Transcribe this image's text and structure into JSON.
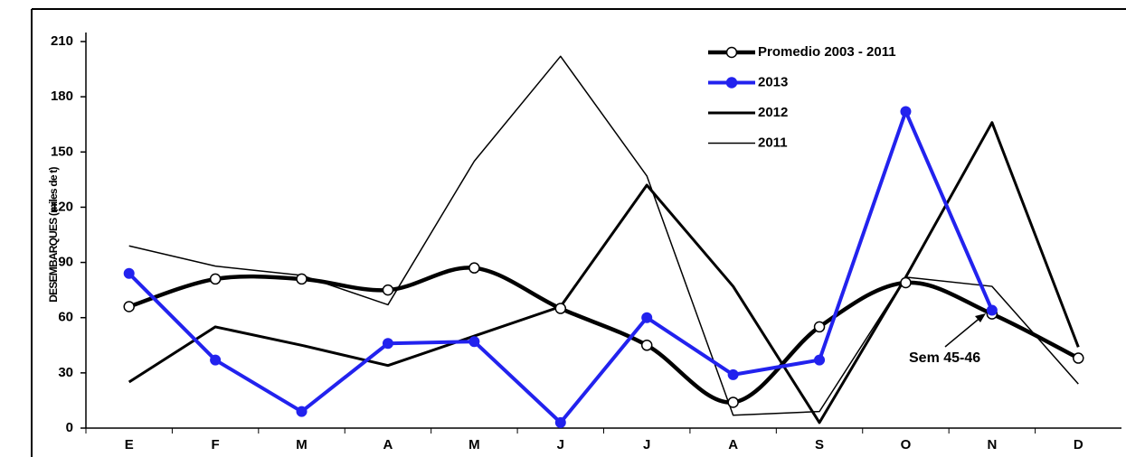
{
  "chart_data": {
    "type": "line",
    "y_label": "DESEMBARQUES (miles de t)",
    "categories": [
      "E",
      "F",
      "M",
      "A",
      "M",
      "J",
      "J",
      "A",
      "S",
      "O",
      "N",
      "D"
    ],
    "series": [
      {
        "name": "Promedio 2003 - 2011",
        "color": "#000000",
        "values": [
          66,
          81,
          81,
          75,
          87,
          65,
          45,
          14,
          55,
          79,
          62,
          38
        ]
      },
      {
        "name": "2013",
        "color": "#2222ee",
        "values": [
          84,
          37,
          9,
          46,
          47,
          3,
          60,
          29,
          37,
          172,
          64,
          null
        ]
      },
      {
        "name": "2012",
        "color": "#000000",
        "values": [
          25,
          55,
          45,
          34,
          50,
          66,
          132,
          77,
          3,
          82,
          166,
          44
        ]
      },
      {
        "name": "2011",
        "color": "#000000",
        "values": [
          99,
          88,
          83,
          67,
          145,
          202,
          137,
          7,
          9,
          82,
          77,
          24
        ]
      }
    ],
    "ylim": [
      0,
      210
    ],
    "yticks": [
      0,
      30,
      60,
      90,
      120,
      150,
      180,
      210
    ],
    "annotation": "Sem 45-46"
  }
}
